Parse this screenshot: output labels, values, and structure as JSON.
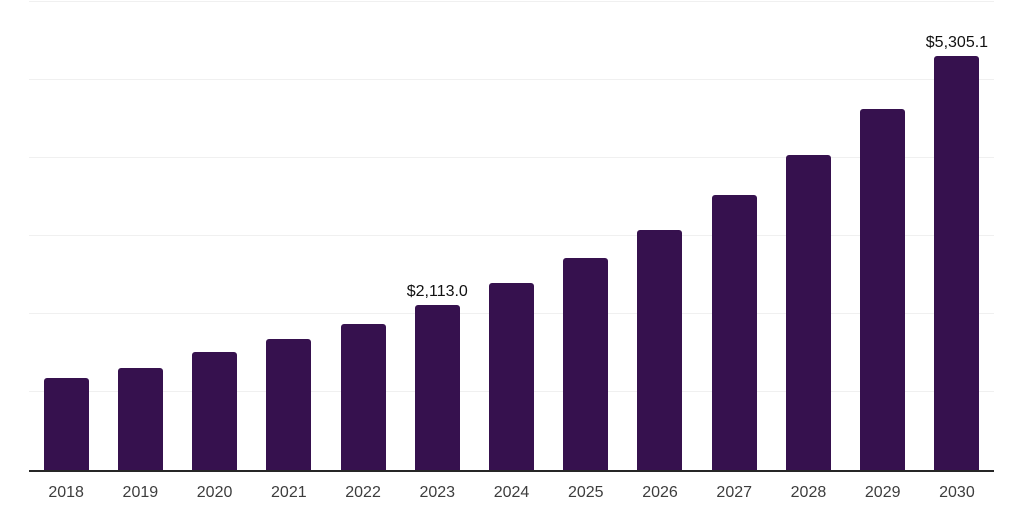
{
  "chart_data": {
    "type": "bar",
    "title": "",
    "xlabel": "",
    "ylabel": "",
    "categories": [
      "2018",
      "2019",
      "2020",
      "2021",
      "2022",
      "2023",
      "2024",
      "2025",
      "2026",
      "2027",
      "2028",
      "2029",
      "2030"
    ],
    "values": [
      1186,
      1307,
      1507,
      1683,
      1876,
      2113.0,
      2397,
      2718,
      3071,
      3521,
      4035,
      4622,
      5305.1
    ],
    "point_labels": [
      "",
      "",
      "",
      "",
      "",
      "$2,113.0",
      "",
      "",
      "",
      "",
      "",
      "",
      "$5,305.1"
    ],
    "ylim": [
      0,
      6000
    ],
    "gridlines": {
      "interval": 1000,
      "visible": true
    },
    "legend": "none",
    "colors": {
      "bar": "#36114E",
      "axis_line": "#262626",
      "gridline": "#f0f0f0",
      "tick_label": "#3d3d3d",
      "value_label": "#111111",
      "background": "#ffffff"
    }
  }
}
